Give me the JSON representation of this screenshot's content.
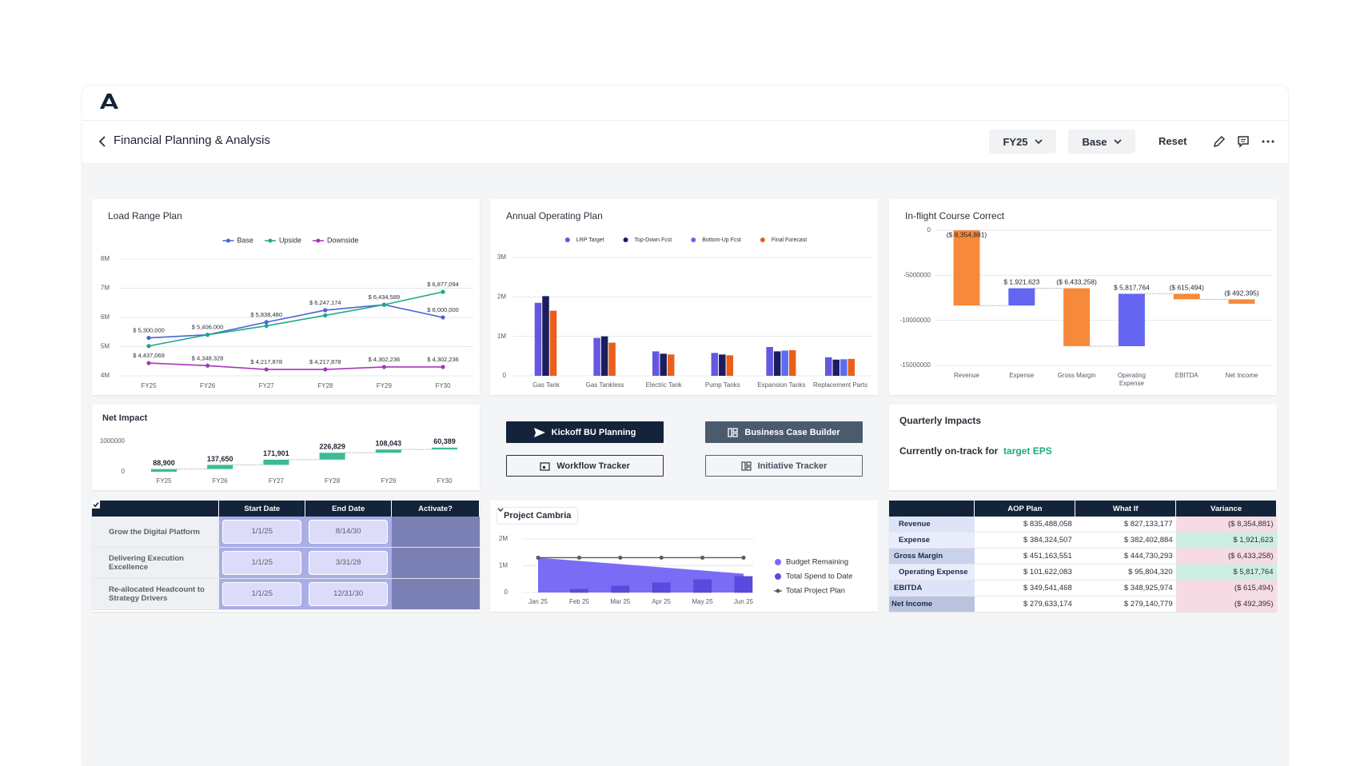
{
  "header": {
    "title": "Financial Planning & Analysis",
    "filters": [
      "FY25",
      "Base"
    ],
    "reset": "Reset"
  },
  "chart_data": [
    {
      "type": "line",
      "title": "Load Range Plan",
      "categories": [
        "FY25",
        "FY26",
        "FY27",
        "FY28",
        "FY29",
        "FY30"
      ],
      "series": [
        {
          "name": "Base",
          "color": "#4b63d8",
          "values": [
            5300000,
            5406000,
            5838480,
            6247174,
            6434589,
            6000000
          ],
          "value_labels": [
            "$ 5,300,000",
            "$ 5,406,000",
            "$ 5,838,480",
            "$ 6,247,174",
            "$ 6,434,589",
            "$ 6,000,000"
          ]
        },
        {
          "name": "Upside",
          "color": "#1faa84",
          "values": [
            5020000,
            5406000,
            5710000,
            6070000,
            6434589,
            6877094
          ],
          "value_labels": [
            null,
            null,
            null,
            null,
            null,
            "$ 6,877,094"
          ]
        },
        {
          "name": "Downside",
          "color": "#a637b8",
          "values": [
            4437069,
            4348328,
            4217878,
            4217878,
            4302236,
            4302236
          ],
          "value_labels": [
            "$ 4,437,069",
            "$ 4,348,328",
            "$ 4,217,878",
            "$ 4,217,878",
            "$ 4,302,236",
            "$ 4,302,236"
          ]
        }
      ],
      "ylim": [
        4000000,
        8000000
      ],
      "yticks": [
        {
          "value": 4000000,
          "label": "4M"
        },
        {
          "value": 5000000,
          "label": "5M"
        },
        {
          "value": 6000000,
          "label": "6M"
        },
        {
          "value": 7000000,
          "label": "7M"
        },
        {
          "value": 8000000,
          "label": "8M"
        }
      ],
      "grid": true,
      "legend": "top"
    },
    {
      "type": "bar",
      "title": "Annual Operating Plan",
      "categories": [
        "Gas Tank",
        "Gas Tankless",
        "Electric Tank",
        "Pump Tanks",
        "Expansion Tanks",
        "Replacement Parts"
      ],
      "series": [
        {
          "name": "LRP Target",
          "color": "#6457e0",
          "values": [
            1850000,
            960000,
            620000,
            580000,
            730000,
            470000
          ]
        },
        {
          "name": "Top-Down Fcst",
          "color": "#1c1d5e",
          "values": [
            2020000,
            1000000,
            560000,
            540000,
            620000,
            410000
          ]
        },
        {
          "name": "Bottom-Up Fcst",
          "color": "#5b6cf5",
          "values": [
            null,
            null,
            null,
            null,
            640000,
            420000
          ]
        },
        {
          "name": "Final Forecast",
          "color": "#e8601c",
          "values": [
            1650000,
            840000,
            540000,
            520000,
            650000,
            430000
          ]
        }
      ],
      "ylim": [
        0,
        3000000
      ],
      "yticks": [
        0,
        {
          "value": 1000000,
          "label": "1M"
        },
        {
          "value": 2000000,
          "label": "2M"
        },
        {
          "value": 3000000,
          "label": "3M"
        }
      ],
      "grid": true,
      "legend": "top"
    },
    {
      "type": "waterfall",
      "title": "In-flight Course Correct",
      "categories": [
        "Revenue",
        "Expense",
        "Gross Margin",
        "Operating Expense",
        "EBITDA",
        "Net Income"
      ],
      "values": [
        -8354881,
        1921623,
        -6433258,
        5817764,
        -615494,
        -492395
      ],
      "value_labels": [
        "($ 8,354,881)",
        "$ 1,921,623",
        "($ 6,433,258)",
        "$ 5,817,764",
        "($ 615,494)",
        "($ 492,395)"
      ],
      "increase_color": "#6466f1",
      "decrease_color": "#f7893b",
      "ylim": [
        -15000000,
        0
      ],
      "yticks": [
        0,
        -5000000,
        -10000000,
        -15000000
      ],
      "grid": true
    },
    {
      "type": "waterfall",
      "title": "Net Impact",
      "categories": [
        "FY25",
        "FY26",
        "FY27",
        "FY28",
        "FY29",
        "FY30"
      ],
      "values": [
        88900,
        137650,
        171901,
        226829,
        108043,
        60389
      ],
      "value_labels": [
        "88,900",
        "137,650",
        "171,901",
        "226,829",
        "108,043",
        "60,389"
      ],
      "increase_color": "#3dbb94",
      "decrease_color": "#f7893b",
      "ylim": [
        0,
        1000000
      ],
      "yticks": [
        0,
        1000000
      ],
      "grid": false
    },
    {
      "type": "combo",
      "title": "Project Cambria",
      "categories": [
        "Jan 25",
        "Feb 25",
        "Mar 25",
        "Apr 25",
        "May 25",
        "Jun 25"
      ],
      "series": [
        {
          "name": "Budget Remaining",
          "kind": "area",
          "color": "#7b6cf6",
          "values": [
            1300000,
            1180000,
            1060000,
            940000,
            820000,
            700000
          ]
        },
        {
          "name": "Total Spend to Date",
          "kind": "bar",
          "color": "#5a4be0",
          "values": [
            0,
            120000,
            240000,
            360000,
            480000,
            600000
          ]
        },
        {
          "name": "Total Project Plan",
          "kind": "line",
          "color": "#555a66",
          "values": [
            1300000,
            1300000,
            1300000,
            1300000,
            1300000,
            1300000
          ]
        }
      ],
      "ylim": [
        0,
        2000000
      ],
      "yticks": [
        0,
        {
          "value": 1000000,
          "label": "1M"
        },
        {
          "value": 2000000,
          "label": "2M"
        }
      ],
      "grid": true,
      "legend": "right"
    }
  ],
  "buttons": [
    "Kickoff BU Planning",
    "Business Case Builder",
    "Workflow Tracker",
    "Initiative Tracker"
  ],
  "quarterly": {
    "title": "Quarterly Impacts",
    "text": "Currently on-track for",
    "highlight": "target EPS"
  },
  "activation_table": {
    "columns": [
      "Start Date",
      "End Date",
      "Activate?"
    ],
    "rows": [
      {
        "label": "Grow the Digital Platform",
        "start": "1/1/25",
        "end": "8/14/30",
        "activated": true
      },
      {
        "label": "Delivering Execution Excellence",
        "start": "1/1/25",
        "end": "3/31/28",
        "activated": true
      },
      {
        "label": "Re-allocated Headcount to Strategy Drivers",
        "start": "1/1/25",
        "end": "12/31/30",
        "activated": true
      }
    ]
  },
  "variance_table": {
    "columns": [
      "AOP Plan",
      "What If",
      "Variance"
    ],
    "rows": [
      {
        "label": "Revenue",
        "cells": [
          "$ 835,488,058",
          "$ 827,133,177",
          "($ 8,354,881)"
        ]
      },
      {
        "label": "Expense",
        "cells": [
          "$ 384,324,507",
          "$ 382,402,884",
          "$ 1,921,623"
        ]
      },
      {
        "label": "Gross Margin",
        "cells": [
          "$ 451,163,551",
          "$ 444,730,293",
          "($ 6,433,258)"
        ]
      },
      {
        "label": "Operating Expense",
        "cells": [
          "$ 101,622,083",
          "$ 95,804,320",
          "$ 5,817,764"
        ]
      },
      {
        "label": "EBITDA",
        "cells": [
          "$ 349,541,468",
          "$ 348,925,974",
          "($ 615,494)"
        ]
      },
      {
        "label": "Net Income",
        "cells": [
          "$ 279,633,174",
          "$ 279,140,779",
          "($ 492,395)"
        ]
      }
    ]
  }
}
